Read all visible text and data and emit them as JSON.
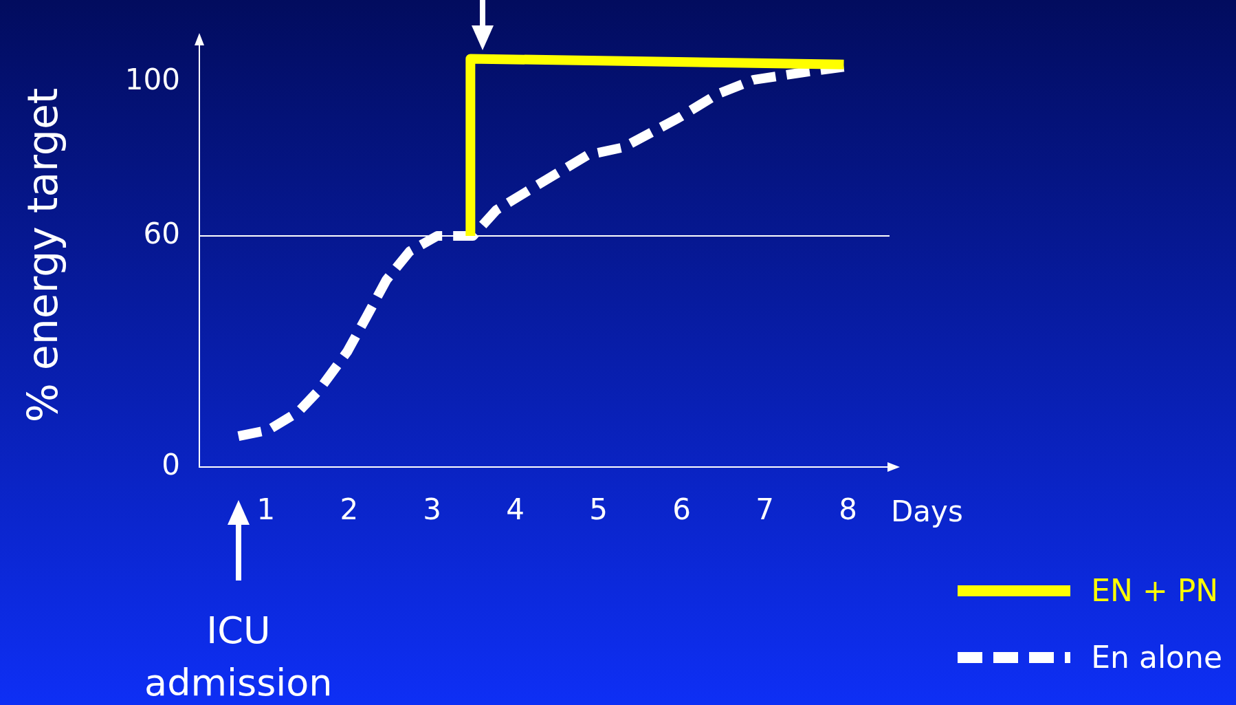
{
  "chart_data": {
    "type": "line",
    "ylabel": "% energy target",
    "xlabel": "Days",
    "xlim": [
      0.2,
      8.5
    ],
    "xticks": [
      1,
      2,
      3,
      4,
      5,
      6,
      7,
      8
    ],
    "ylim": [
      0,
      110
    ],
    "yticks": [
      0,
      60,
      100
    ],
    "grid": false,
    "legend": "bottom right",
    "marker": "none",
    "ref_lines": [
      {
        "axis": "y",
        "value": 60,
        "color": "#ffffff"
      }
    ],
    "annotations": [
      "ICU admission"
    ],
    "series": [
      {
        "name": "EN + PN",
        "color": "#ffff00",
        "line_style": "solid",
        "x": [
          3.46,
          3.46,
          7.95
        ],
        "values": [
          60,
          106,
          104.5
        ]
      },
      {
        "name": "En alone",
        "color": "#ffffff",
        "line_style": "dashed",
        "x": [
          0.67,
          1.03,
          1.39,
          1.64,
          1.98,
          2.21,
          2.45,
          2.73,
          3.06,
          3.49,
          3.77,
          4.25,
          4.87,
          5.3,
          5.96,
          6.43,
          6.86,
          7.47,
          7.99
        ],
        "values": [
          8,
          9.6,
          14.3,
          20,
          30,
          39,
          48.6,
          56,
          60,
          60,
          66.7,
          73,
          81,
          83,
          90.6,
          96.8,
          100.5,
          102.5,
          104
        ]
      }
    ]
  }
}
